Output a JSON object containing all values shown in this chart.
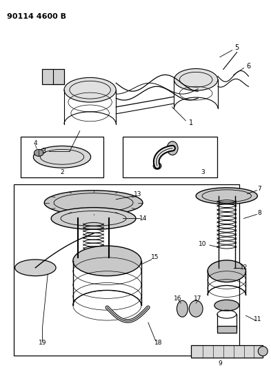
{
  "title": "90114 4600 B",
  "bg_color": "#ffffff",
  "line_color": "#000000",
  "fig_width": 3.93,
  "fig_height": 5.33,
  "dpi": 100,
  "title_fontsize": 8,
  "title_fontweight": "bold"
}
